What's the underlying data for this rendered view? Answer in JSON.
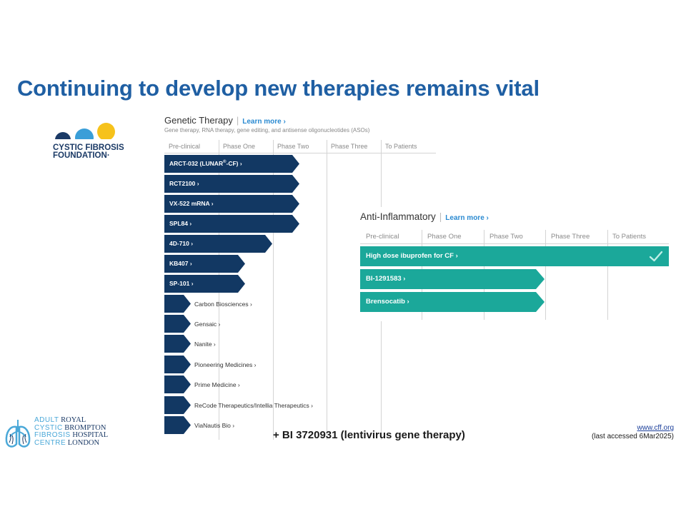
{
  "slide": {
    "title": "Continuing to develop new therapies remains vital",
    "footnote": "+ BI 3720931 (lentivirus gene therapy)",
    "citation_link": "www.cff.org",
    "citation_date": "(last accessed 6Mar2025)"
  },
  "cff_logo": {
    "line1": "CYSTIC FIBROSIS",
    "line2": "FOUNDATION",
    "mark": "·",
    "colors": [
      "#1b3a66",
      "#3a9ed8",
      "#f6c21b"
    ]
  },
  "genetic": {
    "title": "Genetic Therapy",
    "learn_more": "Learn more ›",
    "subtitle": "Gene therapy, RNA therapy, gene editing, and antisense oligonucleotides (ASOs)",
    "phases": [
      "Pre-clinical",
      "Phase One",
      "Phase Two",
      "Phase Three",
      "To Patients"
    ],
    "programs": [
      {
        "pre": "ARCT-032 (LUNAR",
        "sup": "®",
        "post": "-CF) ›",
        "progress": 2.5
      },
      {
        "pre": "RCT2100 ›",
        "progress": 2.5
      },
      {
        "pre": "VX-522 mRNA ›",
        "progress": 2.5
      },
      {
        "pre": "SPL84 ›",
        "progress": 2.5
      },
      {
        "pre": "4D-710 ›",
        "progress": 2.0
      },
      {
        "pre": "KB407 ›",
        "progress": 1.5
      },
      {
        "pre": "SP-101 ›",
        "progress": 1.5
      }
    ],
    "companies": [
      "Carbon Biosciences ›",
      "Gensaic ›",
      "Nanite ›",
      "Pioneering Medicines ›",
      "Prime Medicine ›",
      "ReCode Therapeutics/Intellia Therapeutics ›",
      "ViaNautis Bio ›"
    ]
  },
  "anti": {
    "title": "Anti-Inflammatory",
    "learn_more": "Learn more ›",
    "phases": [
      "Pre-clinical",
      "Phase One",
      "Phase Two",
      "Phase Three",
      "To Patients"
    ],
    "programs": [
      {
        "label": "High dose ibuprofen for CF ›",
        "progress": 5,
        "approved": true
      },
      {
        "label": "BI-1291583 ›",
        "progress": 3
      },
      {
        "label": "Brensocatib ›",
        "progress": 3
      }
    ]
  },
  "rb_logo": {
    "left": [
      "ADULT",
      "CYSTIC",
      "FIBROSIS",
      "CENTRE"
    ],
    "right": [
      "ROYAL",
      "BROMPTON",
      "HOSPITAL",
      "LONDON"
    ]
  },
  "colors": {
    "navy": "#123863",
    "teal": "#1ba89a",
    "title_blue": "#1f5fa3",
    "link_blue": "#2a8ad1"
  }
}
